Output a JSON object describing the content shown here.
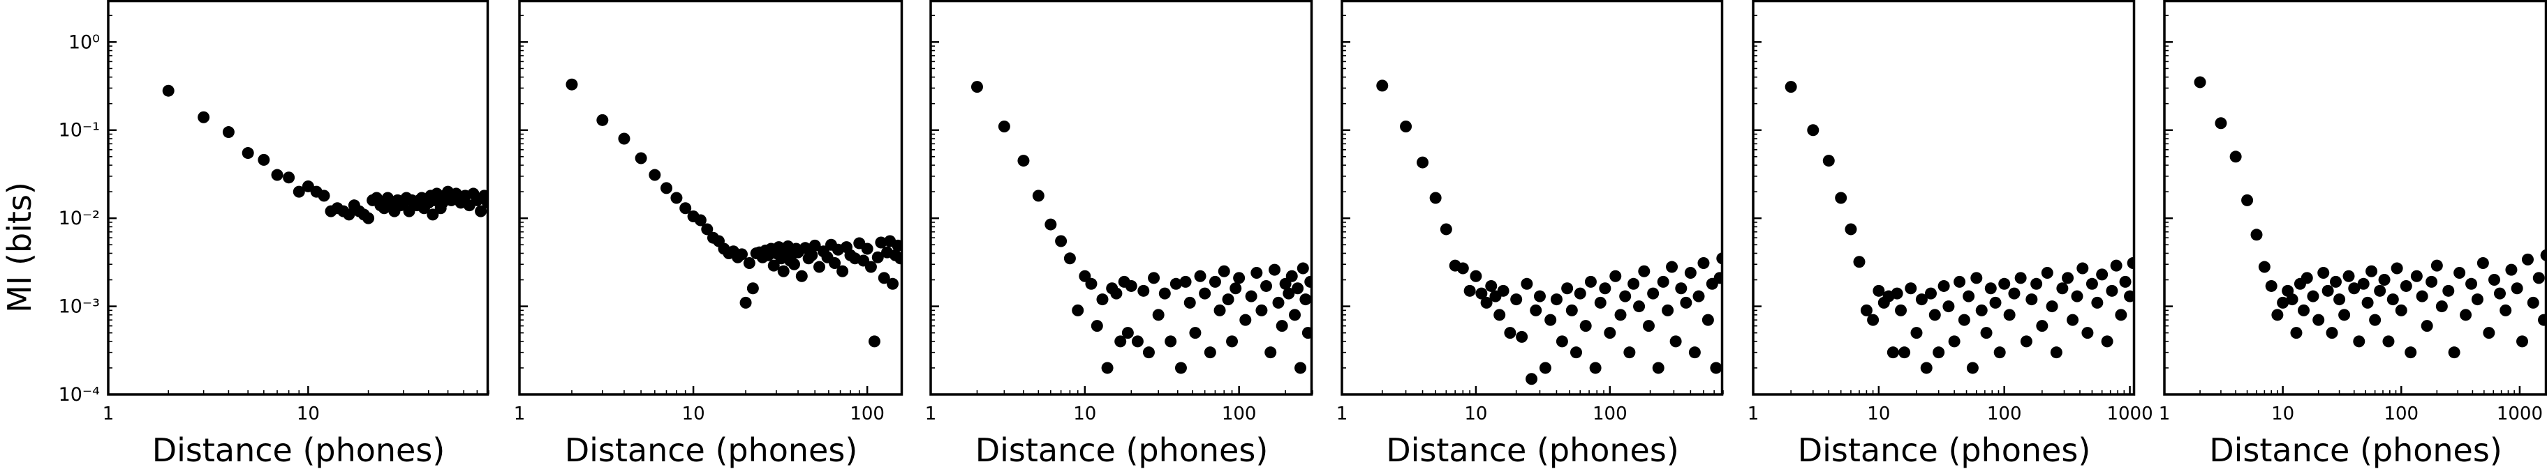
{
  "figure": {
    "ylabel": "MI (bits)",
    "ytick_labels": [
      "10⁰",
      "10⁻¹",
      "10⁻²",
      "10⁻³",
      "10⁻⁴"
    ],
    "marker_color": "#000000"
  },
  "chart_data": [
    {
      "type": "scatter",
      "xlabel": "Distance (phones)",
      "ylabel": "MI (bits)",
      "xscale": "log",
      "yscale": "log",
      "xlim": [
        1,
        80
      ],
      "ylim": [
        0.0001,
        3
      ],
      "xtick_labels": [
        "1",
        "10"
      ],
      "x": [
        2,
        3,
        4,
        5,
        6,
        7,
        8,
        9,
        10,
        11,
        12,
        13,
        14,
        15,
        16,
        17,
        18,
        19,
        20,
        21,
        22,
        23,
        24,
        25,
        26,
        27,
        28,
        29,
        30,
        31,
        32,
        33,
        34,
        35,
        36,
        37,
        38,
        39,
        40,
        41,
        42,
        43,
        44,
        45,
        46,
        47,
        48,
        50,
        52,
        55,
        58,
        61,
        64,
        67,
        70,
        73,
        76,
        79
      ],
      "y": [
        0.28,
        0.14,
        0.095,
        0.055,
        0.046,
        0.031,
        0.029,
        0.02,
        0.023,
        0.02,
        0.018,
        0.012,
        0.013,
        0.012,
        0.011,
        0.014,
        0.012,
        0.011,
        0.01,
        0.016,
        0.017,
        0.014,
        0.013,
        0.017,
        0.015,
        0.012,
        0.016,
        0.014,
        0.015,
        0.017,
        0.012,
        0.016,
        0.015,
        0.014,
        0.016,
        0.017,
        0.013,
        0.016,
        0.015,
        0.018,
        0.011,
        0.016,
        0.019,
        0.017,
        0.013,
        0.015,
        0.018,
        0.02,
        0.016,
        0.019,
        0.015,
        0.018,
        0.014,
        0.019,
        0.016,
        0.012,
        0.018,
        0.015
      ]
    },
    {
      "type": "scatter",
      "xlabel": "Distance (phones)",
      "ylabel": "MI (bits)",
      "xscale": "log",
      "yscale": "log",
      "xlim": [
        1,
        160
      ],
      "ylim": [
        0.0001,
        3
      ],
      "xtick_labels": [
        "1",
        "10",
        "100"
      ],
      "x": [
        2,
        3,
        4,
        5,
        6,
        7,
        8,
        9,
        10,
        11,
        12,
        13,
        14,
        15,
        16,
        17,
        18,
        19,
        20,
        21,
        22,
        23,
        24,
        25,
        26,
        27,
        28,
        29,
        30,
        31,
        32,
        33,
        34,
        35,
        36,
        37,
        38,
        39,
        40,
        42,
        44,
        46,
        48,
        50,
        53,
        56,
        59,
        62,
        65,
        68,
        72,
        76,
        80,
        85,
        90,
        95,
        100,
        105,
        110,
        115,
        120,
        125,
        130,
        135,
        140,
        145,
        150,
        155
      ],
      "y": [
        0.33,
        0.13,
        0.08,
        0.048,
        0.031,
        0.022,
        0.017,
        0.013,
        0.0105,
        0.0095,
        0.0075,
        0.006,
        0.0055,
        0.0045,
        0.004,
        0.0042,
        0.0036,
        0.0039,
        0.0011,
        0.0031,
        0.0016,
        0.004,
        0.0041,
        0.0036,
        0.0043,
        0.0038,
        0.0045,
        0.0029,
        0.004,
        0.0047,
        0.0035,
        0.0025,
        0.0042,
        0.0048,
        0.0033,
        0.0039,
        0.003,
        0.0045,
        0.0041,
        0.0022,
        0.0046,
        0.0035,
        0.0038,
        0.0049,
        0.0028,
        0.0042,
        0.0036,
        0.005,
        0.0031,
        0.0044,
        0.0025,
        0.0047,
        0.0038,
        0.0035,
        0.0052,
        0.0033,
        0.0045,
        0.0028,
        0.0004,
        0.0036,
        0.0053,
        0.0021,
        0.0041,
        0.0055,
        0.0018,
        0.0038,
        0.0049,
        0.0035
      ]
    },
    {
      "type": "scatter",
      "xlabel": "Distance (phones)",
      "ylabel": "MI (bits)",
      "xscale": "log",
      "yscale": "log",
      "xlim": [
        1,
        300
      ],
      "ylim": [
        0.0001,
        3
      ],
      "xtick_labels": [
        "1",
        "10",
        "100"
      ],
      "x": [
        2,
        3,
        4,
        5,
        6,
        7,
        8,
        9,
        10,
        11,
        12,
        13,
        14,
        15,
        16,
        17,
        18,
        19,
        20,
        22,
        24,
        26,
        28,
        30,
        33,
        36,
        39,
        42,
        45,
        48,
        52,
        56,
        60,
        65,
        70,
        75,
        80,
        85,
        90,
        95,
        100,
        110,
        120,
        130,
        140,
        150,
        160,
        170,
        180,
        190,
        200,
        210,
        220,
        230,
        240,
        250,
        260,
        270,
        280,
        290
      ],
      "y": [
        0.31,
        0.11,
        0.045,
        0.018,
        0.0085,
        0.0055,
        0.0035,
        0.0009,
        0.0022,
        0.0018,
        0.0006,
        0.0012,
        0.0002,
        0.0016,
        0.0014,
        0.0004,
        0.0019,
        0.0005,
        0.0017,
        0.0004,
        0.0015,
        0.0003,
        0.0021,
        0.0008,
        0.0014,
        0.0004,
        0.0018,
        0.0002,
        0.0019,
        0.0011,
        0.0005,
        0.0022,
        0.0014,
        0.0003,
        0.0019,
        0.0009,
        0.0025,
        0.0012,
        0.0004,
        0.0016,
        0.0021,
        0.0007,
        0.0013,
        0.0024,
        0.0009,
        0.0017,
        0.0003,
        0.0026,
        0.0011,
        0.0006,
        0.0018,
        0.0014,
        0.0022,
        0.0008,
        0.0016,
        0.0002,
        0.0027,
        0.0012,
        0.0005,
        0.0019
      ]
    },
    {
      "type": "scatter",
      "xlabel": "Distance (phones)",
      "ylabel": "MI (bits)",
      "xscale": "log",
      "yscale": "log",
      "xlim": [
        1,
        700
      ],
      "ylim": [
        0.0001,
        3
      ],
      "xtick_labels": [
        "1",
        "10",
        "100"
      ],
      "x": [
        2,
        3,
        4,
        5,
        6,
        7,
        8,
        9,
        10,
        11,
        12,
        13,
        14,
        15,
        16,
        18,
        20,
        22,
        24,
        26,
        28,
        30,
        33,
        36,
        40,
        44,
        48,
        52,
        56,
        60,
        66,
        72,
        78,
        85,
        92,
        100,
        110,
        120,
        130,
        140,
        150,
        165,
        180,
        195,
        210,
        230,
        250,
        270,
        290,
        310,
        340,
        370,
        400,
        430,
        460,
        500,
        540,
        580,
        620,
        660,
        690
      ],
      "y": [
        0.32,
        0.11,
        0.043,
        0.017,
        0.0075,
        0.0029,
        0.0027,
        0.0015,
        0.0022,
        0.0014,
        0.0011,
        0.0017,
        0.0013,
        0.0008,
        0.0015,
        0.0005,
        0.0012,
        0.00045,
        0.0018,
        0.00015,
        0.0009,
        0.0013,
        0.0002,
        0.0007,
        0.0012,
        0.0004,
        0.0016,
        0.0009,
        0.0003,
        0.0014,
        0.0006,
        0.0019,
        0.0002,
        0.0011,
        0.0016,
        0.0005,
        0.0022,
        0.0008,
        0.0013,
        0.0003,
        0.0018,
        0.001,
        0.0025,
        0.0006,
        0.0014,
        0.0002,
        0.0019,
        0.0009,
        0.0028,
        0.0004,
        0.0016,
        0.0011,
        0.0024,
        0.0003,
        0.0013,
        0.0031,
        0.0007,
        0.0018,
        0.0002,
        0.0021,
        0.0035
      ]
    },
    {
      "type": "scatter",
      "xlabel": "Distance (phones)",
      "ylabel": "MI (bits)",
      "xscale": "log",
      "yscale": "log",
      "xlim": [
        1,
        1100
      ],
      "ylim": [
        0.0001,
        3
      ],
      "xtick_labels": [
        "1",
        "10",
        "100",
        "1000"
      ],
      "x": [
        2,
        3,
        4,
        5,
        6,
        7,
        8,
        9,
        10,
        11,
        12,
        13,
        14,
        15,
        16,
        18,
        20,
        22,
        24,
        26,
        28,
        30,
        33,
        36,
        40,
        44,
        48,
        52,
        56,
        60,
        66,
        72,
        78,
        85,
        92,
        100,
        110,
        120,
        135,
        150,
        165,
        180,
        200,
        220,
        240,
        260,
        290,
        320,
        350,
        380,
        420,
        460,
        500,
        550,
        600,
        660,
        720,
        780,
        850,
        920,
        1000,
        1060
      ],
      "y": [
        0.31,
        0.1,
        0.045,
        0.017,
        0.0075,
        0.0032,
        0.0009,
        0.0007,
        0.0015,
        0.0011,
        0.0013,
        0.0003,
        0.0014,
        0.0009,
        0.0003,
        0.0016,
        0.0005,
        0.0012,
        0.0002,
        0.0014,
        0.0008,
        0.0003,
        0.0017,
        0.001,
        0.0004,
        0.0019,
        0.0007,
        0.0013,
        0.0002,
        0.0021,
        0.0009,
        0.0005,
        0.0016,
        0.0011,
        0.0003,
        0.0018,
        0.0008,
        0.0014,
        0.0021,
        0.0004,
        0.0012,
        0.0018,
        0.0006,
        0.0024,
        0.001,
        0.0003,
        0.0016,
        0.0021,
        0.0007,
        0.0013,
        0.0027,
        0.0005,
        0.0018,
        0.0011,
        0.0023,
        0.0004,
        0.0015,
        0.0029,
        0.0008,
        0.0019,
        0.0013,
        0.0031
      ]
    },
    {
      "type": "scatter",
      "xlabel": "Distance (phones)",
      "ylabel": "MI (bits)",
      "xscale": "log",
      "yscale": "log",
      "xlim": [
        1,
        1700
      ],
      "ylim": [
        0.0001,
        3
      ],
      "xtick_labels": [
        "1",
        "10",
        "100",
        "1000"
      ],
      "x": [
        2,
        3,
        4,
        5,
        6,
        7,
        8,
        9,
        10,
        11,
        12,
        13,
        14,
        15,
        16,
        18,
        20,
        22,
        24,
        26,
        28,
        30,
        33,
        36,
        40,
        44,
        48,
        52,
        56,
        60,
        66,
        72,
        78,
        85,
        92,
        100,
        110,
        120,
        135,
        150,
        165,
        180,
        200,
        220,
        250,
        280,
        310,
        350,
        390,
        440,
        490,
        550,
        610,
        680,
        760,
        850,
        950,
        1050,
        1170,
        1300,
        1450,
        1600,
        1680
      ],
      "y": [
        0.35,
        0.12,
        0.05,
        0.016,
        0.0065,
        0.0028,
        0.0017,
        0.0008,
        0.0011,
        0.0015,
        0.0012,
        0.0005,
        0.0018,
        0.0009,
        0.0021,
        0.0013,
        0.0007,
        0.0024,
        0.0015,
        0.0005,
        0.0019,
        0.0012,
        0.0008,
        0.0022,
        0.0016,
        0.0004,
        0.0018,
        0.0011,
        0.0025,
        0.0007,
        0.0015,
        0.002,
        0.0004,
        0.0012,
        0.0027,
        0.0009,
        0.0017,
        0.0003,
        0.0022,
        0.0013,
        0.0006,
        0.0019,
        0.0029,
        0.001,
        0.0015,
        0.0003,
        0.0024,
        0.0008,
        0.0018,
        0.0012,
        0.0031,
        0.0005,
        0.002,
        0.0014,
        0.0009,
        0.0026,
        0.0016,
        0.0004,
        0.0034,
        0.0011,
        0.0021,
        0.0007,
        0.0038
      ]
    }
  ]
}
